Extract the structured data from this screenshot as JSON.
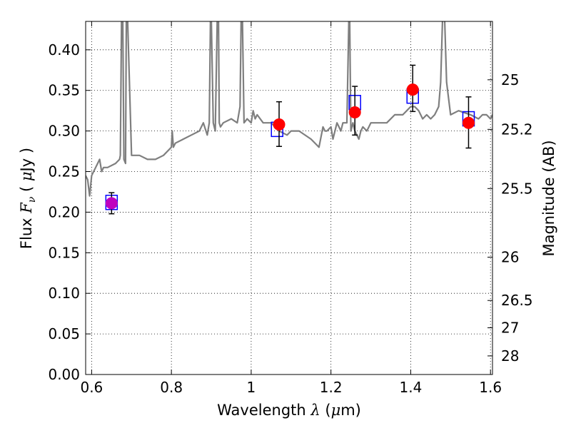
{
  "chart_data": {
    "type": "scatter",
    "xlabel": {
      "prefix": "Wavelength  ",
      "symbol": "λ",
      "suffix": " (",
      "unit_symbol": "μ",
      "unit_rest": "m)"
    },
    "ylabel": {
      "prefix": "Flux  ",
      "symbol": "F",
      "subscript": "ν",
      "mid": "  ( ",
      "unit_symbol": "μ",
      "unit_rest": "Jy )"
    },
    "y2label": "Magnitude (AB)",
    "xlim": [
      0.585,
      1.605
    ],
    "ylim": [
      0.0,
      0.435
    ],
    "x_ticks": [
      0.6,
      0.8,
      1.0,
      1.2,
      1.4,
      1.6
    ],
    "x_tick_labels": [
      "0.6",
      "0.8",
      "1",
      "1.2",
      "1.4",
      "1.6"
    ],
    "y_ticks": [
      0.0,
      0.05,
      0.1,
      0.15,
      0.2,
      0.25,
      0.3,
      0.35,
      0.4
    ],
    "y_tick_labels": [
      "0.00",
      "0.05",
      "0.10",
      "0.15",
      "0.20",
      "0.25",
      "0.30",
      "0.35",
      "0.40"
    ],
    "y2_ticks": [
      25,
      25.2,
      25.5,
      26,
      26.5,
      27,
      28
    ],
    "y2_tick_labels": [
      "25",
      "25.2",
      "25.5",
      "26",
      "26.5",
      "27",
      "28"
    ],
    "grid": true,
    "series": [
      {
        "style": "line",
        "color": "#7f7f7f",
        "x": [
          0.585,
          0.59,
          0.595,
          0.6,
          0.61,
          0.615,
          0.62,
          0.625,
          0.63,
          0.64,
          0.66,
          0.67,
          0.672,
          0.675,
          0.678,
          0.681,
          0.685,
          0.687,
          0.69,
          0.7,
          0.72,
          0.74,
          0.76,
          0.78,
          0.8,
          0.802,
          0.805,
          0.81,
          0.83,
          0.85,
          0.87,
          0.88,
          0.89,
          0.895,
          0.898,
          0.9,
          0.905,
          0.91,
          0.915,
          0.918,
          0.92,
          0.923,
          0.93,
          0.95,
          0.965,
          0.972,
          0.975,
          0.978,
          0.982,
          0.99,
          1.0,
          1.005,
          1.01,
          1.015,
          1.03,
          1.05,
          1.06,
          1.07,
          1.09,
          1.1,
          1.12,
          1.15,
          1.17,
          1.18,
          1.185,
          1.19,
          1.2,
          1.205,
          1.21,
          1.215,
          1.22,
          1.225,
          1.23,
          1.24,
          1.245,
          1.247,
          1.25,
          1.255,
          1.26,
          1.27,
          1.275,
          1.28,
          1.29,
          1.3,
          1.32,
          1.34,
          1.36,
          1.38,
          1.39,
          1.4,
          1.41,
          1.42,
          1.43,
          1.44,
          1.45,
          1.46,
          1.47,
          1.475,
          1.48,
          1.485,
          1.49,
          1.495,
          1.5,
          1.52,
          1.55,
          1.57,
          1.58,
          1.59,
          1.6,
          1.605
        ],
        "y": [
          0.245,
          0.24,
          0.22,
          0.245,
          0.255,
          0.26,
          0.265,
          0.25,
          0.255,
          0.255,
          0.26,
          0.265,
          0.27,
          0.44,
          0.44,
          0.265,
          0.26,
          0.44,
          0.44,
          0.27,
          0.27,
          0.265,
          0.265,
          0.27,
          0.28,
          0.3,
          0.28,
          0.285,
          0.29,
          0.295,
          0.3,
          0.31,
          0.295,
          0.31,
          0.44,
          0.44,
          0.31,
          0.3,
          0.44,
          0.44,
          0.31,
          0.305,
          0.31,
          0.315,
          0.31,
          0.33,
          0.44,
          0.44,
          0.31,
          0.315,
          0.31,
          0.325,
          0.315,
          0.32,
          0.31,
          0.31,
          0.305,
          0.3,
          0.295,
          0.3,
          0.3,
          0.29,
          0.28,
          0.305,
          0.3,
          0.3,
          0.305,
          0.29,
          0.3,
          0.31,
          0.305,
          0.3,
          0.31,
          0.31,
          0.44,
          0.44,
          0.3,
          0.31,
          0.3,
          0.29,
          0.3,
          0.305,
          0.3,
          0.31,
          0.31,
          0.31,
          0.32,
          0.32,
          0.325,
          0.33,
          0.33,
          0.325,
          0.315,
          0.32,
          0.315,
          0.32,
          0.33,
          0.36,
          0.44,
          0.44,
          0.36,
          0.34,
          0.32,
          0.325,
          0.32,
          0.315,
          0.32,
          0.32,
          0.315,
          0.32
        ]
      },
      {
        "style": "open-square",
        "color": "#0000ff",
        "x": [
          0.65,
          1.065,
          1.26,
          1.405,
          1.545
        ],
        "y": [
          0.212,
          0.302,
          0.335,
          0.343,
          0.315
        ]
      },
      {
        "style": "filled-circle-errorbar",
        "color": "#ff0000",
        "first_point_color": "#bf00bf",
        "x": [
          0.65,
          1.07,
          1.26,
          1.405,
          1.545
        ],
        "y": [
          0.211,
          0.308,
          0.323,
          0.351,
          0.31
        ],
        "yerr_low": [
          0.013,
          0.027,
          0.028,
          0.027,
          0.031
        ],
        "yerr_high": [
          0.013,
          0.028,
          0.032,
          0.03,
          0.032
        ]
      }
    ]
  }
}
